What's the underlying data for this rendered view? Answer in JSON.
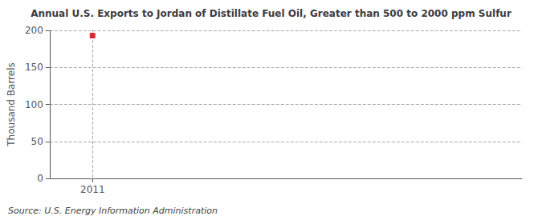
{
  "chart_data": {
    "type": "scatter",
    "title": "Annual U.S. Exports to Jordan of Distillate Fuel Oil, Greater than 500 to 2000 ppm Sulfur",
    "ylabel": "Thousand Barrels",
    "source": "Source: U.S. Energy Information Administration",
    "x": [
      2011
    ],
    "values": [
      193
    ],
    "color": "#cc0000",
    "marker": "square",
    "xlim": [
      2010.6,
      2015.0
    ],
    "xticks": [
      2011
    ],
    "ylim": [
      0,
      200
    ],
    "yticks": [
      0,
      50,
      100,
      150,
      200
    ],
    "grid": true
  }
}
